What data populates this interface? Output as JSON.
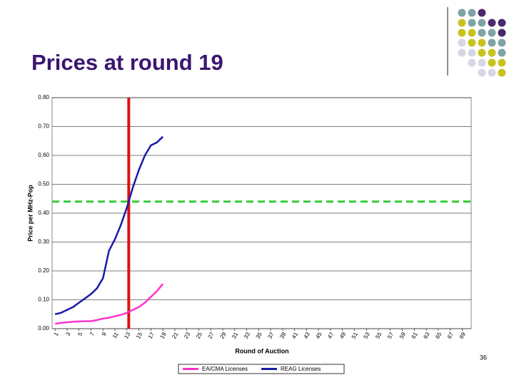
{
  "header": {
    "title": "Prices at round 19",
    "page": "36"
  },
  "chart_data": {
    "type": "line",
    "xlabel": "Round of Auction",
    "ylabel": "Price per MHz-Pop",
    "x": [
      1,
      2,
      3,
      4,
      5,
      6,
      7,
      8,
      9,
      10,
      11,
      12,
      13,
      14,
      15,
      16,
      17,
      18,
      19
    ],
    "series": [
      {
        "name": "EA/CMA Licenses",
        "color": "#ff33cc",
        "values": [
          0.017,
          0.02,
          0.022,
          0.024,
          0.025,
          0.026,
          0.026,
          0.03,
          0.035,
          0.038,
          0.043,
          0.048,
          0.055,
          0.065,
          0.075,
          0.09,
          0.11,
          0.13,
          0.155
        ]
      },
      {
        "name": "REAG Licenses",
        "color": "#1a1aaa",
        "values": [
          0.05,
          0.055,
          0.065,
          0.075,
          0.09,
          0.105,
          0.12,
          0.14,
          0.175,
          0.27,
          0.31,
          0.36,
          0.42,
          0.49,
          0.55,
          0.6,
          0.635,
          0.645,
          0.665
        ]
      }
    ],
    "xlim": [
      0.5,
      70.5
    ],
    "xticks": [
      1,
      3,
      5,
      7,
      9,
      11,
      13,
      15,
      17,
      19,
      21,
      23,
      25,
      27,
      29,
      31,
      33,
      35,
      37,
      39,
      41,
      43,
      45,
      47,
      49,
      51,
      53,
      55,
      57,
      59,
      61,
      63,
      65,
      67,
      69
    ],
    "ylim": [
      0,
      0.8
    ],
    "yticks": [
      {
        "value": 0,
        "label": "0.00"
      },
      {
        "value": 0.1,
        "label": "0.10"
      },
      {
        "value": 0.2,
        "label": "0.20"
      },
      {
        "value": 0.3,
        "label": "0.30"
      },
      {
        "value": 0.4,
        "label": "0.40"
      },
      {
        "value": 0.5,
        "label": "0.50"
      },
      {
        "value": 0.6,
        "label": "0.60"
      },
      {
        "value": 0.7,
        "label": "0.70"
      },
      {
        "value": 0.8,
        "label": "0.80"
      }
    ],
    "grid": true,
    "vline": {
      "value": 13.3,
      "color": "#dd1111"
    },
    "hline": {
      "value": 0.44,
      "color": "#33cc33"
    },
    "legend": "bottom"
  }
}
